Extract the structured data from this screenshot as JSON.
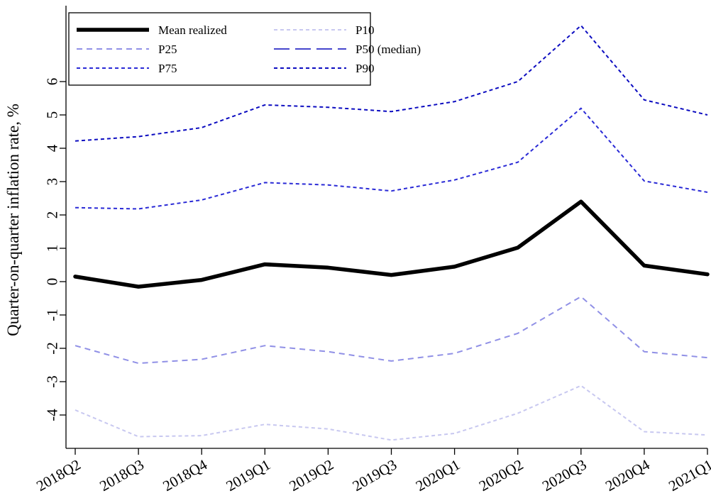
{
  "chart_data": {
    "type": "line",
    "ylabel": "Quarter-on-quarter inflation rate, %",
    "xlabel": "",
    "categories": [
      "2018Q2",
      "2018Q3",
      "2018Q4",
      "2019Q1",
      "2019Q2",
      "2019Q3",
      "2020Q1",
      "2020Q2",
      "2020Q3",
      "2020Q4",
      "2021Q1"
    ],
    "ylim": [
      -4.85,
      6.85
    ],
    "yticks": [
      6,
      5,
      4,
      3,
      2,
      1,
      0,
      -1,
      -2,
      -3,
      -4
    ],
    "ytick_labels": [
      "6",
      "5",
      "4",
      "3",
      "2",
      "1",
      "0",
      "-1",
      "-2",
      "-3",
      "-4"
    ],
    "grid": false,
    "legend_position": "top-left",
    "series": [
      {
        "name": "Mean realized",
        "color": "#000000",
        "style": "solid",
        "values": [
          0.15,
          -0.15,
          0.05,
          0.52,
          0.42,
          0.2,
          0.45,
          1.02,
          2.4,
          0.48,
          0.22
        ]
      },
      {
        "name": "P10",
        "color": "#c8c8f0",
        "style": "dotted",
        "values": [
          -3.85,
          -4.65,
          -4.62,
          -4.28,
          -4.42,
          -4.75,
          -4.55,
          -3.95,
          -3.12,
          -4.5,
          -4.6
        ]
      },
      {
        "name": "P25",
        "color": "#9090e6",
        "style": "dashed",
        "values": [
          -1.92,
          -2.45,
          -2.33,
          -1.92,
          -2.1,
          -2.38,
          -2.15,
          -1.55,
          -0.45,
          -2.1,
          -2.28
        ]
      },
      {
        "name": "P50 (median)",
        "color": "#4646cc",
        "style": "longdash",
        "values": [
          0.15,
          -0.13,
          0.08,
          0.52,
          0.42,
          0.2,
          0.45,
          1.02,
          2.4,
          0.48,
          0.22
        ]
      },
      {
        "name": "P75",
        "color": "#2a2ad6",
        "style": "dotted",
        "values": [
          2.22,
          2.18,
          2.45,
          2.97,
          2.9,
          2.72,
          3.05,
          3.58,
          5.2,
          3.02,
          2.68
        ]
      },
      {
        "name": "P90",
        "color": "#0c0cc0",
        "style": "dotted",
        "values": [
          4.22,
          4.35,
          4.62,
          5.3,
          5.23,
          5.1,
          5.4,
          6.0,
          7.68,
          5.45,
          5.0
        ]
      }
    ]
  }
}
